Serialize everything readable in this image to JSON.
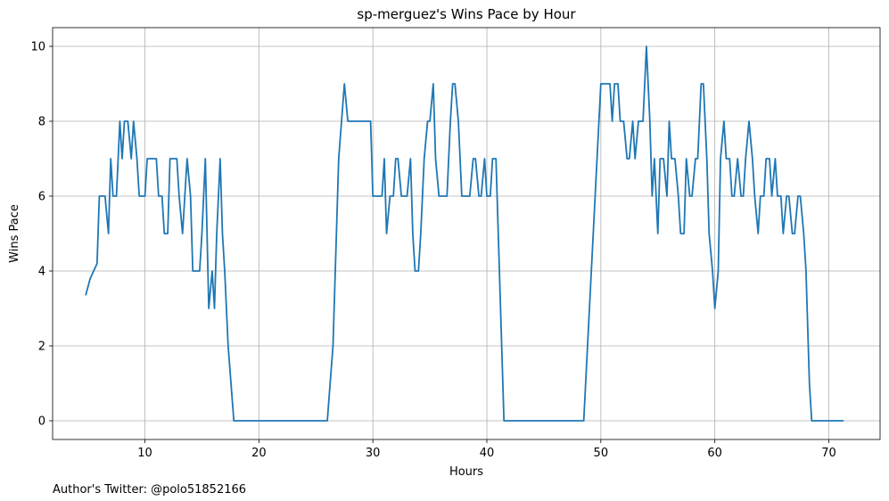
{
  "chart_data": {
    "type": "line",
    "title": "sp-merguez's Wins Pace by Hour",
    "xlabel": "Hours",
    "ylabel": "Wins Pace",
    "xlim": [
      1.9,
      74.5
    ],
    "ylim": [
      -0.5,
      10.5
    ],
    "xticks": [
      10,
      20,
      30,
      40,
      50,
      60,
      70
    ],
    "yticks": [
      0,
      2,
      4,
      6,
      8,
      10
    ],
    "grid": true,
    "legend": "none",
    "series": [
      {
        "color": "#1f77b4",
        "x": [
          4.8,
          5.2,
          5.8,
          6.0,
          6.5,
          6.8,
          7.0,
          7.2,
          7.5,
          7.8,
          8.0,
          8.2,
          8.5,
          8.8,
          9.0,
          9.3,
          9.5,
          10.0,
          10.2,
          10.5,
          11.0,
          11.2,
          11.5,
          11.7,
          12.0,
          12.2,
          12.5,
          12.8,
          13.0,
          13.3,
          13.5,
          13.7,
          14.0,
          14.2,
          14.5,
          14.8,
          15.0,
          15.3,
          15.6,
          15.9,
          16.1,
          16.3,
          16.6,
          16.8,
          17.0,
          17.3,
          17.8,
          18.0,
          20.0,
          25.0,
          26.0,
          26.5,
          27.0,
          27.5,
          27.8,
          28.5,
          29.0,
          29.5,
          29.8,
          30.0,
          30.5,
          30.8,
          31.0,
          31.2,
          31.5,
          31.8,
          32.0,
          32.2,
          32.5,
          32.8,
          33.0,
          33.3,
          33.5,
          33.7,
          34.0,
          34.2,
          34.5,
          34.8,
          35.0,
          35.3,
          35.5,
          35.8,
          36.0,
          36.5,
          36.8,
          37.0,
          37.2,
          37.5,
          37.8,
          38.0,
          38.5,
          38.8,
          39.0,
          39.3,
          39.5,
          39.8,
          40.0,
          40.3,
          40.5,
          40.8,
          41.0,
          41.3,
          41.5,
          42.0,
          45.0,
          48.5,
          49.0,
          49.5,
          50.0,
          50.5,
          50.8,
          51.0,
          51.2,
          51.5,
          51.7,
          52.0,
          52.3,
          52.5,
          52.8,
          53.0,
          53.3,
          53.5,
          53.7,
          54.0,
          54.3,
          54.5,
          54.7,
          55.0,
          55.2,
          55.5,
          55.8,
          56.0,
          56.2,
          56.5,
          56.8,
          57.0,
          57.3,
          57.5,
          57.8,
          58.0,
          58.3,
          58.5,
          58.8,
          59.0,
          59.3,
          59.5,
          59.8,
          60.0,
          60.3,
          60.5,
          60.8,
          61.0,
          61.3,
          61.5,
          61.7,
          62.0,
          62.3,
          62.5,
          62.7,
          63.0,
          63.3,
          63.5,
          63.8,
          64.0,
          64.3,
          64.5,
          64.8,
          65.0,
          65.3,
          65.5,
          65.8,
          66.0,
          66.3,
          66.5,
          66.8,
          67.0,
          67.3,
          67.5,
          67.8,
          68.0,
          68.3,
          68.5,
          69.0,
          71.3
        ],
        "y": [
          3.35,
          3.8,
          4.2,
          6.0,
          6.0,
          5.0,
          7.0,
          6.0,
          6.0,
          8.0,
          7.0,
          8.0,
          8.0,
          7.0,
          8.0,
          7.0,
          6.0,
          6.0,
          7.0,
          7.0,
          7.0,
          6.0,
          6.0,
          5.0,
          5.0,
          7.0,
          7.0,
          7.0,
          6.0,
          5.0,
          6.0,
          7.0,
          6.0,
          4.0,
          4.0,
          4.0,
          5.0,
          7.0,
          3.0,
          4.0,
          3.0,
          5.0,
          7.0,
          5.0,
          4.0,
          2.0,
          0.0,
          0.0,
          0.0,
          0.0,
          0.0,
          2.0,
          7.0,
          9.0,
          8.0,
          8.0,
          8.0,
          8.0,
          8.0,
          6.0,
          6.0,
          6.0,
          7.0,
          5.0,
          6.0,
          6.0,
          7.0,
          7.0,
          6.0,
          6.0,
          6.0,
          7.0,
          5.0,
          4.0,
          4.0,
          5.0,
          7.0,
          8.0,
          8.0,
          9.0,
          7.0,
          6.0,
          6.0,
          6.0,
          8.0,
          9.0,
          9.0,
          8.0,
          6.0,
          6.0,
          6.0,
          7.0,
          7.0,
          6.0,
          6.0,
          7.0,
          6.0,
          6.0,
          7.0,
          7.0,
          5.0,
          2.0,
          0.0,
          0.0,
          0.0,
          0.0,
          3.0,
          6.0,
          9.0,
          9.0,
          9.0,
          8.0,
          9.0,
          9.0,
          8.0,
          8.0,
          7.0,
          7.0,
          8.0,
          7.0,
          8.0,
          8.0,
          8.0,
          10.0,
          8.0,
          6.0,
          7.0,
          5.0,
          7.0,
          7.0,
          6.0,
          8.0,
          7.0,
          7.0,
          6.0,
          5.0,
          5.0,
          7.0,
          6.0,
          6.0,
          7.0,
          7.0,
          9.0,
          9.0,
          7.0,
          5.0,
          4.0,
          3.0,
          4.0,
          7.0,
          8.0,
          7.0,
          7.0,
          6.0,
          6.0,
          7.0,
          6.0,
          6.0,
          7.0,
          8.0,
          7.0,
          6.0,
          5.0,
          6.0,
          6.0,
          7.0,
          7.0,
          6.0,
          7.0,
          6.0,
          6.0,
          5.0,
          6.0,
          6.0,
          5.0,
          5.0,
          6.0,
          6.0,
          5.0,
          4.0,
          1.0,
          0.0,
          0.0,
          0.0
        ]
      }
    ]
  },
  "footer": {
    "text": "Author's Twitter: @polo51852166"
  }
}
